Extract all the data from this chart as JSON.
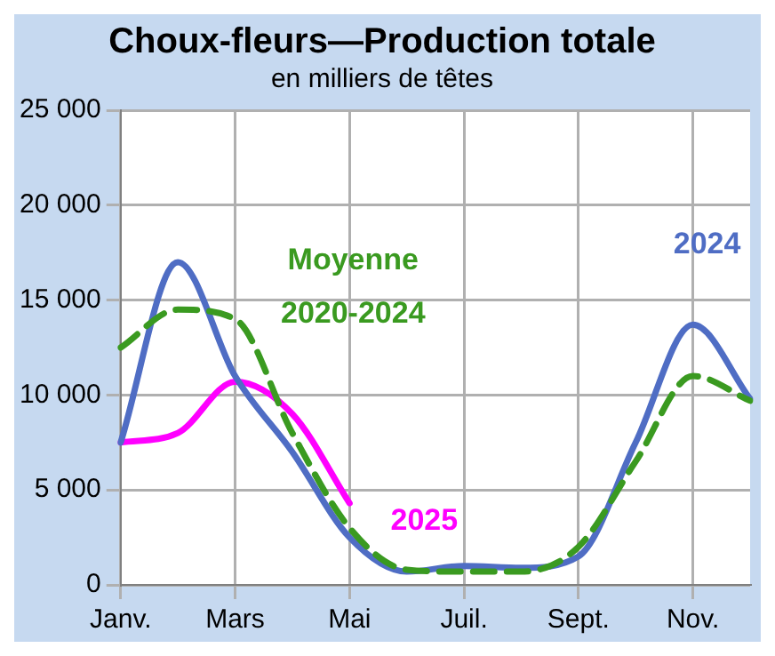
{
  "chart_data": {
    "type": "line",
    "title": "Choux-fleurs—Production totale",
    "subtitle": "en milliers de têtes",
    "categories": [
      "Janv.",
      null,
      "Mars",
      null,
      "Mai",
      null,
      "Juil.",
      null,
      "Sept.",
      null,
      "Nov.",
      null
    ],
    "series": [
      {
        "name": "Moyenne 2020-2024",
        "color": "#3a9a20",
        "line_style": "dashed",
        "values": [
          12500,
          14500,
          14000,
          8000,
          3000,
          800,
          700,
          700,
          2000,
          6500,
          11000,
          9700
        ]
      },
      {
        "name": "2024",
        "color": "#4f6dc4",
        "line_style": "solid",
        "values": [
          7500,
          17000,
          11000,
          7000,
          2500,
          700,
          1000,
          900,
          1500,
          7500,
          13700,
          9800
        ]
      },
      {
        "name": "2025",
        "color": "#ff00ff",
        "line_style": "solid",
        "values": [
          7500,
          8000,
          10700,
          9000,
          4300,
          null,
          null,
          null,
          null,
          null,
          null,
          null
        ]
      }
    ],
    "ylim": [
      0,
      25000
    ],
    "yticks": [
      {
        "value": 0,
        "label": "0"
      },
      {
        "value": 5000,
        "label": "5 000"
      },
      {
        "value": 10000,
        "label": "10 000"
      },
      {
        "value": 15000,
        "label": "15 000"
      },
      {
        "value": 20000,
        "label": "20 000"
      },
      {
        "value": 25000,
        "label": "25 000"
      }
    ],
    "grid": true,
    "legend": false,
    "marker": "none"
  }
}
